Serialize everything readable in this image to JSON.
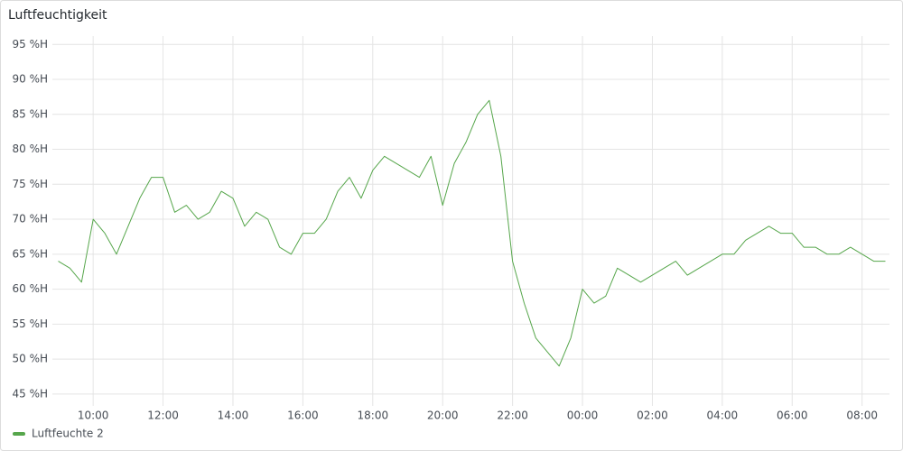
{
  "chart_data": {
    "type": "line",
    "title": "Luftfeuchtigkeit",
    "x": [
      "09:00",
      "09:20",
      "09:40",
      "10:00",
      "10:20",
      "10:40",
      "11:00",
      "11:20",
      "11:40",
      "12:00",
      "12:20",
      "12:40",
      "13:00",
      "13:20",
      "13:40",
      "14:00",
      "14:20",
      "14:40",
      "15:00",
      "15:20",
      "15:40",
      "16:00",
      "16:20",
      "16:40",
      "17:00",
      "17:20",
      "17:40",
      "18:00",
      "18:20",
      "18:40",
      "19:00",
      "19:20",
      "19:40",
      "20:00",
      "20:20",
      "20:40",
      "21:00",
      "21:20",
      "21:40",
      "22:00",
      "22:20",
      "22:40",
      "23:00",
      "23:20",
      "23:40",
      "00:00",
      "00:20",
      "00:40",
      "01:00",
      "01:20",
      "01:40",
      "02:00",
      "02:20",
      "02:40",
      "03:00",
      "03:20",
      "03:40",
      "04:00",
      "04:20",
      "04:40",
      "05:00",
      "05:20",
      "05:40",
      "06:00",
      "06:20",
      "06:40",
      "07:00",
      "07:20",
      "07:40",
      "08:00",
      "08:20",
      "08:40"
    ],
    "series": [
      {
        "name": "Luftfeuchte 2",
        "color": "#56a64b",
        "values": [
          64,
          63,
          61,
          70,
          68,
          65,
          69,
          73,
          76,
          76,
          71,
          72,
          70,
          71,
          74,
          73,
          69,
          71,
          70,
          66,
          65,
          68,
          68,
          70,
          74,
          76,
          73,
          77,
          79,
          78,
          77,
          76,
          79,
          72,
          78,
          81,
          85,
          87,
          79,
          64,
          58,
          53,
          51,
          49,
          53,
          60,
          58,
          59,
          63,
          62,
          61,
          62,
          63,
          64,
          62,
          63,
          64,
          65,
          65,
          67,
          68,
          69,
          68,
          68,
          66,
          66,
          65,
          65,
          66,
          65,
          64,
          64
        ]
      }
    ],
    "xlim": [
      "08:50",
      "08:47"
    ],
    "xticks": [
      "10:00",
      "12:00",
      "14:00",
      "16:00",
      "18:00",
      "20:00",
      "22:00",
      "00:00",
      "02:00",
      "04:00",
      "06:00",
      "08:00"
    ],
    "ylim": [
      43.3,
      96.2
    ],
    "yticks": [
      {
        "value": 45,
        "label": "45 %H"
      },
      {
        "value": 50,
        "label": "50 %H"
      },
      {
        "value": 55,
        "label": "55 %H"
      },
      {
        "value": 60,
        "label": "60 %H"
      },
      {
        "value": 65,
        "label": "65 %H"
      },
      {
        "value": 70,
        "label": "70 %H"
      },
      {
        "value": 75,
        "label": "75 %H"
      },
      {
        "value": 80,
        "label": "80 %H"
      },
      {
        "value": 85,
        "label": "85 %H"
      },
      {
        "value": 90,
        "label": "90 %H"
      },
      {
        "value": 95,
        "label": "95 %H"
      }
    ],
    "grid": true
  }
}
